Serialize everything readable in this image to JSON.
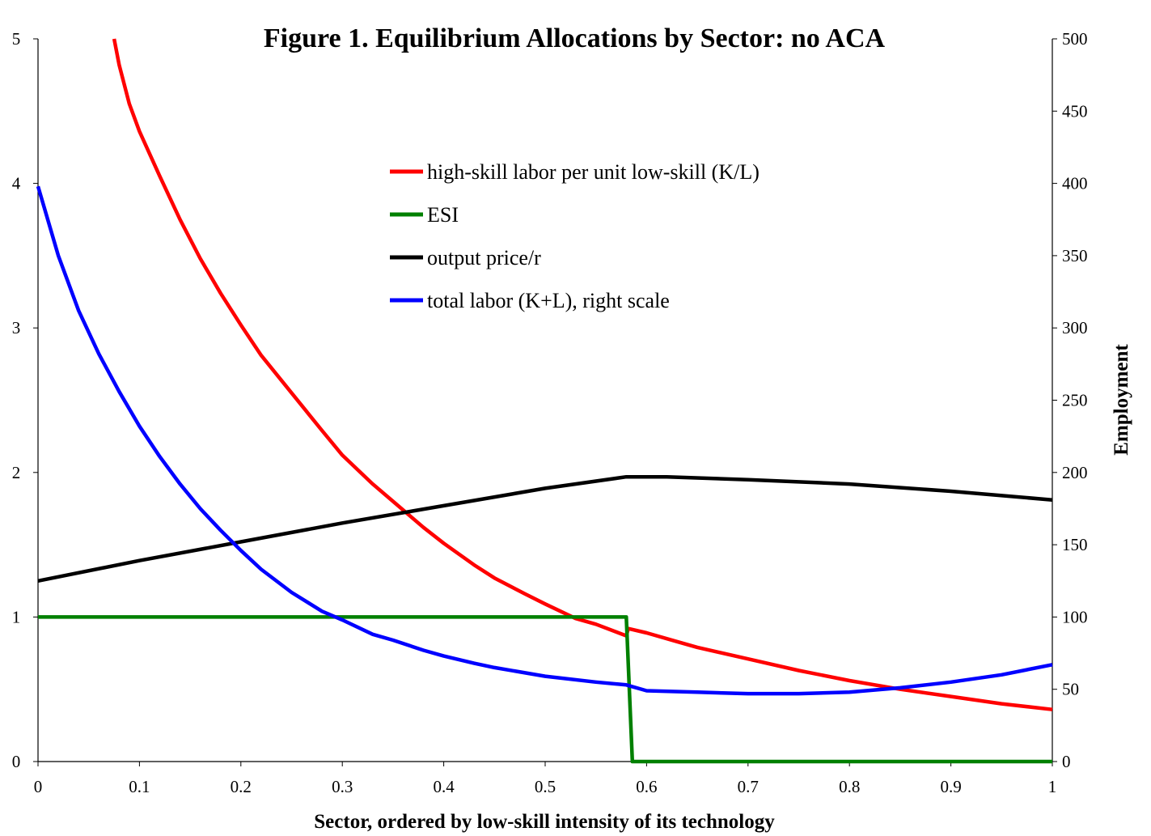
{
  "chart_data": {
    "type": "line",
    "title": "Figure 1.  Equilibrium Allocations by Sector: no ACA",
    "xlabel": "Sector, ordered by low-skill intensity of its technology",
    "ylabel": "",
    "y2label": "Employment",
    "xlim": [
      0,
      1
    ],
    "ylim": [
      0,
      5
    ],
    "y2lim": [
      0,
      500
    ],
    "x_ticks": [
      "0",
      "0.1",
      "0.2",
      "0.3",
      "0.4",
      "0.5",
      "0.6",
      "0.7",
      "0.8",
      "0.9",
      "1"
    ],
    "y_ticks": [
      "0",
      "1",
      "2",
      "3",
      "4",
      "5"
    ],
    "y2_ticks": [
      "0",
      "50",
      "100",
      "150",
      "200",
      "250",
      "300",
      "350",
      "400",
      "450",
      "500"
    ],
    "grid": false,
    "legend_position": "upper-center",
    "series": [
      {
        "name": "high-skill labor per unit low-skill (K/L)",
        "color": "#ff0000",
        "axis": "left",
        "points": [
          [
            0.075,
            5.0
          ],
          [
            0.08,
            4.82
          ],
          [
            0.09,
            4.55
          ],
          [
            0.1,
            4.36
          ],
          [
            0.12,
            4.05
          ],
          [
            0.14,
            3.75
          ],
          [
            0.16,
            3.48
          ],
          [
            0.18,
            3.24
          ],
          [
            0.2,
            3.02
          ],
          [
            0.22,
            2.81
          ],
          [
            0.25,
            2.55
          ],
          [
            0.28,
            2.29
          ],
          [
            0.3,
            2.12
          ],
          [
            0.33,
            1.92
          ],
          [
            0.35,
            1.8
          ],
          [
            0.38,
            1.62
          ],
          [
            0.4,
            1.51
          ],
          [
            0.43,
            1.36
          ],
          [
            0.45,
            1.27
          ],
          [
            0.48,
            1.16
          ],
          [
            0.5,
            1.09
          ],
          [
            0.53,
            0.99
          ],
          [
            0.55,
            0.95
          ],
          [
            0.58,
            0.87
          ],
          [
            0.582,
            0.92
          ],
          [
            0.6,
            0.89
          ],
          [
            0.63,
            0.83
          ],
          [
            0.65,
            0.79
          ],
          [
            0.7,
            0.71
          ],
          [
            0.75,
            0.63
          ],
          [
            0.8,
            0.56
          ],
          [
            0.85,
            0.5
          ],
          [
            0.9,
            0.45
          ],
          [
            0.95,
            0.4
          ],
          [
            1.0,
            0.36
          ]
        ]
      },
      {
        "name": "ESI",
        "color": "#008000",
        "axis": "left",
        "points": [
          [
            0.0,
            1.0
          ],
          [
            0.58,
            1.0
          ],
          [
            0.586,
            0.0
          ],
          [
            1.0,
            0.0
          ]
        ]
      },
      {
        "name": "output price/r",
        "color": "#000000",
        "axis": "left",
        "points": [
          [
            0.0,
            1.25
          ],
          [
            0.1,
            1.39
          ],
          [
            0.2,
            1.52
          ],
          [
            0.3,
            1.65
          ],
          [
            0.4,
            1.77
          ],
          [
            0.5,
            1.89
          ],
          [
            0.58,
            1.97
          ],
          [
            0.62,
            1.97
          ],
          [
            0.7,
            1.95
          ],
          [
            0.8,
            1.92
          ],
          [
            0.9,
            1.87
          ],
          [
            1.0,
            1.81
          ]
        ]
      },
      {
        "name": "total labor (K+L), right scale",
        "color": "#0000ff",
        "axis": "right",
        "points": [
          [
            0.0,
            398
          ],
          [
            0.02,
            350
          ],
          [
            0.04,
            312
          ],
          [
            0.06,
            282
          ],
          [
            0.08,
            256
          ],
          [
            0.1,
            232
          ],
          [
            0.12,
            211
          ],
          [
            0.14,
            192
          ],
          [
            0.16,
            175
          ],
          [
            0.18,
            160
          ],
          [
            0.2,
            146
          ],
          [
            0.22,
            133
          ],
          [
            0.25,
            117
          ],
          [
            0.28,
            104
          ],
          [
            0.3,
            98
          ],
          [
            0.33,
            88
          ],
          [
            0.35,
            84
          ],
          [
            0.38,
            77
          ],
          [
            0.4,
            73
          ],
          [
            0.43,
            68
          ],
          [
            0.45,
            65
          ],
          [
            0.5,
            59
          ],
          [
            0.55,
            55
          ],
          [
            0.58,
            53
          ],
          [
            0.6,
            49
          ],
          [
            0.65,
            48
          ],
          [
            0.7,
            47
          ],
          [
            0.75,
            47
          ],
          [
            0.8,
            48
          ],
          [
            0.85,
            51
          ],
          [
            0.9,
            55
          ],
          [
            0.95,
            60
          ],
          [
            1.0,
            67
          ]
        ]
      }
    ]
  }
}
